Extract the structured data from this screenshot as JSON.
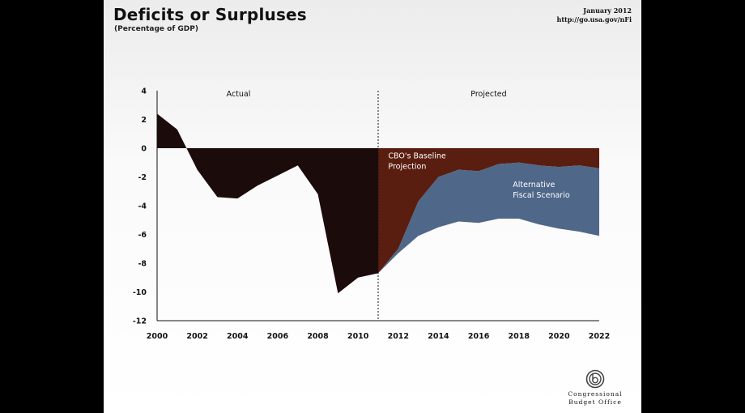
{
  "header": {
    "title": "Deficits or Surpluses",
    "subtitle": "(Percentage of GDP)",
    "date": "January 2012",
    "url": "http://go.usa.gov/nFi"
  },
  "logo": {
    "icon": "cbo-logo-icon",
    "line1": "Congressional",
    "line2": "Budget Office"
  },
  "colors": {
    "actual": "#1b0b0b",
    "baseline": "#5a1e10",
    "alternative": "#4f6788"
  },
  "chart_data": {
    "type": "area",
    "title": "Deficits or Surpluses",
    "subtitle": "(Percentage of GDP)",
    "xlabel": "",
    "ylabel": "",
    "xlim": [
      2000,
      2022
    ],
    "ylim": [
      -12,
      4
    ],
    "x_ticks": [
      "2000",
      "2002",
      "2004",
      "2006",
      "2008",
      "2010",
      "2012",
      "2014",
      "2016",
      "2018",
      "2020",
      "2022"
    ],
    "y_ticks": [
      "4",
      "2",
      "0",
      "-2",
      "-4",
      "-6",
      "-8",
      "-10",
      "-12"
    ],
    "grid": false,
    "regions": [
      {
        "label": "Actual",
        "from": 2000,
        "to": 2011
      },
      {
        "label": "Projected",
        "from": 2011,
        "to": 2022
      }
    ],
    "divider_x": 2011,
    "series": [
      {
        "name": "Actual",
        "x": [
          2000,
          2001,
          2002,
          2003,
          2004,
          2005,
          2006,
          2007,
          2008,
          2009,
          2010,
          2011
        ],
        "values": [
          2.4,
          1.3,
          -1.5,
          -3.4,
          -3.5,
          -2.6,
          -1.9,
          -1.2,
          -3.2,
          -10.1,
          -9.0,
          -8.7
        ]
      },
      {
        "name": "CBO's Baseline Projection",
        "x": [
          2011,
          2012,
          2013,
          2014,
          2015,
          2016,
          2017,
          2018,
          2019,
          2020,
          2021,
          2022
        ],
        "values": [
          -8.7,
          -7.0,
          -3.7,
          -2.0,
          -1.5,
          -1.6,
          -1.1,
          -1.0,
          -1.2,
          -1.3,
          -1.2,
          -1.4
        ]
      },
      {
        "name": "Alternative Fiscal Scenario",
        "x": [
          2011,
          2012,
          2013,
          2014,
          2015,
          2016,
          2017,
          2018,
          2019,
          2020,
          2021,
          2022
        ],
        "values": [
          -8.7,
          -7.3,
          -6.1,
          -5.5,
          -5.1,
          -5.2,
          -4.9,
          -4.9,
          -5.3,
          -5.6,
          -5.8,
          -6.1
        ]
      }
    ],
    "annotations": [
      {
        "text_lines": [
          "CBO's Baseline",
          "Projection"
        ],
        "series": "CBO's Baseline Projection"
      },
      {
        "text_lines": [
          "Alternative",
          "Fiscal Scenario"
        ],
        "series": "Alternative Fiscal Scenario"
      }
    ]
  }
}
